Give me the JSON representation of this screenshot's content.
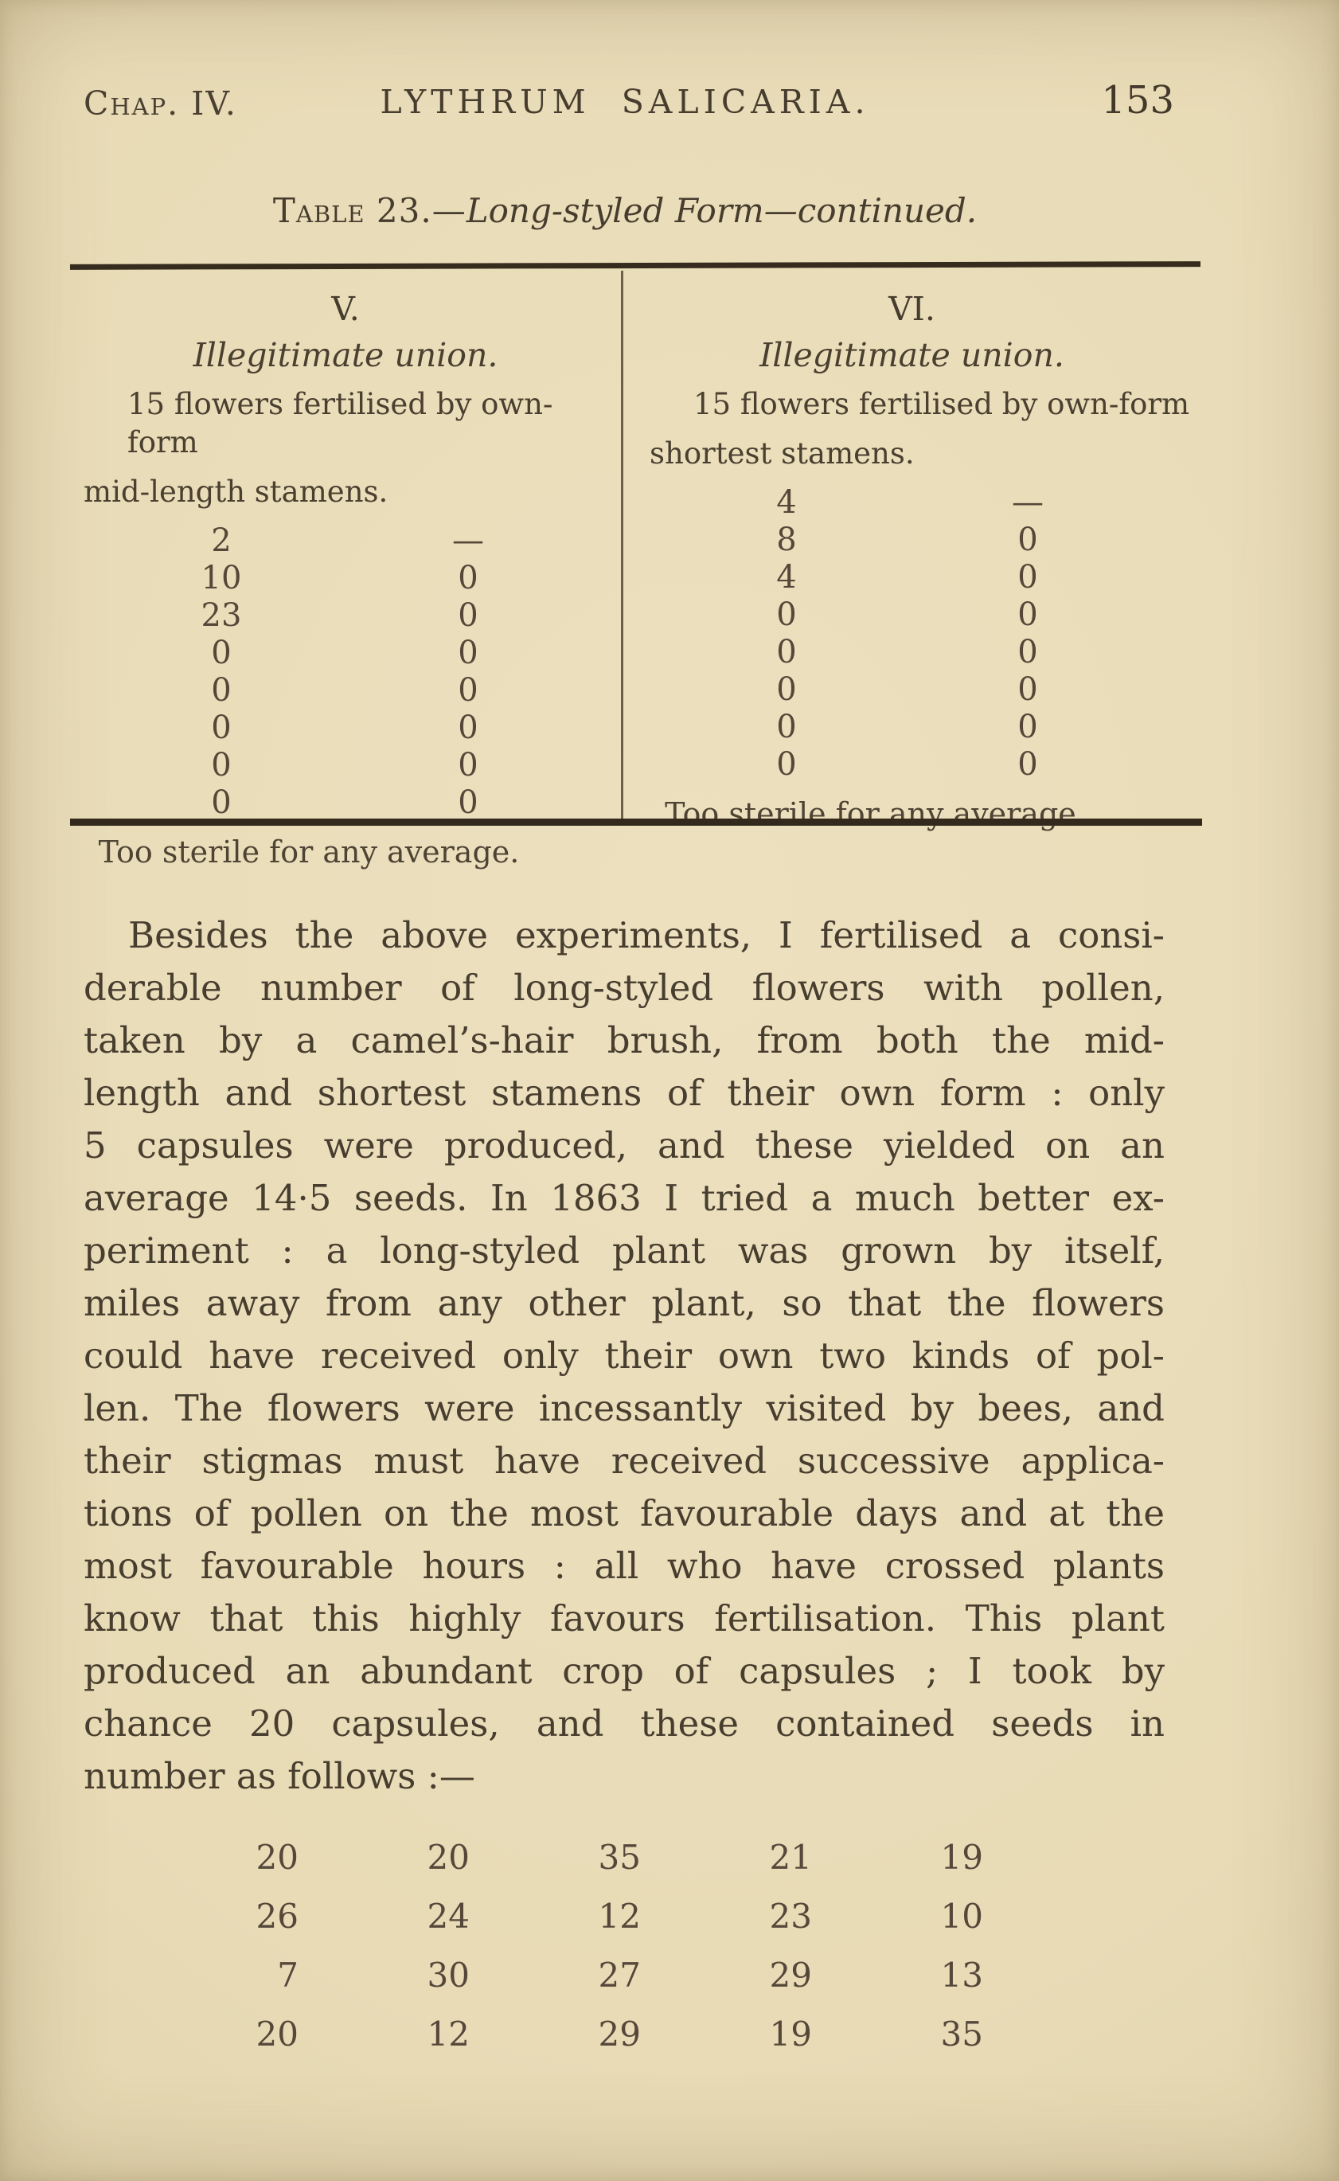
{
  "page": {
    "chapter": "Chap. IV.",
    "running_title": "LYTHRUM  SALICARIA.",
    "page_number": "153",
    "table_title_prefix": "Table 23.—",
    "table_title_italic": "Long-styled Form—continued."
  },
  "capsule_table": {
    "columns": [
      {
        "numeral": "V.",
        "union_label": "Illegitimate union.",
        "desc_line1": "15 flowers fertilised by own-form",
        "desc_line2": "mid-length stamens.",
        "rows": [
          [
            "2",
            "—"
          ],
          [
            "10",
            "0"
          ],
          [
            "23",
            "0"
          ],
          [
            "0",
            "0"
          ],
          [
            "0",
            "0"
          ],
          [
            "0",
            "0"
          ],
          [
            "0",
            "0"
          ],
          [
            "0",
            "0"
          ]
        ],
        "footer": "Too sterile for any average."
      },
      {
        "numeral": "VI.",
        "union_label": "Illegitimate union.",
        "desc_line1": "15 flowers fertilised by own-form",
        "desc_line2": "shortest stamens.",
        "rows": [
          [
            "4",
            "—"
          ],
          [
            "8",
            "0"
          ],
          [
            "4",
            "0"
          ],
          [
            "0",
            "0"
          ],
          [
            "0",
            "0"
          ],
          [
            "0",
            "0"
          ],
          [
            "0",
            "0"
          ],
          [
            "0",
            "0"
          ]
        ],
        "footer": "Too sterile for any average."
      }
    ]
  },
  "paragraph": {
    "lines": [
      "Besides the above experiments, I fertilised a consi-",
      "derable number of long-styled flowers with pollen,",
      "taken by a camel’s-hair brush, from both the mid-",
      "length and shortest stamens of their own form : only",
      "5 capsules were produced, and these yielded on an",
      "average 14·5 seeds. In 1863 I tried a much better ex-",
      "periment : a long-styled plant was grown by itself,",
      "miles away from any other plant, so that the flowers",
      "could have received only their own two kinds of pol-",
      "len. The flowers were incessantly visited by bees, and",
      "their stigmas must have received successive applica-",
      "tions of pollen on the most favourable days and at the",
      "most favourable hours : all who have crossed plants",
      "know that this highly favours fertilisation. This plant",
      "produced an abundant crop of capsules ; I took by",
      "chance 20 capsules, and these contained seeds in",
      "number as follows :—"
    ]
  },
  "seed_counts": {
    "rows": [
      [
        "20",
        "20",
        "35",
        "21",
        "19"
      ],
      [
        "26",
        "24",
        "12",
        "23",
        "10"
      ],
      [
        "7",
        "30",
        "27",
        "29",
        "13"
      ],
      [
        "20",
        "12",
        "29",
        "19",
        "35"
      ]
    ]
  }
}
